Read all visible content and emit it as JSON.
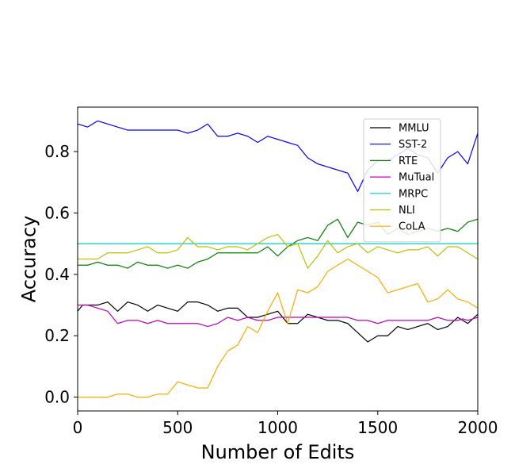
{
  "chart_data": {
    "type": "line",
    "title": "",
    "xlabel": "Number of Edits",
    "ylabel": "Accuracy",
    "xlim": [
      0,
      2000
    ],
    "ylim": [
      -0.045,
      0.945
    ],
    "xticks": [
      0,
      500,
      1000,
      1500,
      2000
    ],
    "yticks": [
      0.0,
      0.2,
      0.4,
      0.6,
      0.8
    ],
    "ytick_labels": [
      "0.0",
      "0.2",
      "0.4",
      "0.6",
      "0.8"
    ],
    "grid": false,
    "legend_position": "top-right",
    "x": [
      0,
      25,
      50,
      75,
      100,
      125,
      150,
      175,
      200,
      225,
      250,
      275,
      300,
      325,
      350,
      375,
      400,
      425,
      450,
      475,
      500,
      525,
      550,
      575,
      600,
      625,
      650,
      675,
      700,
      725,
      750,
      775,
      800,
      825,
      850,
      875,
      900,
      925,
      950,
      975,
      1000,
      1025,
      1050,
      1075,
      1100,
      1125,
      1150,
      1175,
      1200,
      1225,
      1250,
      1275,
      1300,
      1325,
      1350,
      1375,
      1400,
      1425,
      1450,
      1475,
      1500,
      1525,
      1550,
      1575,
      1600,
      1625,
      1650,
      1675,
      1700,
      1725,
      1750,
      1775,
      1800,
      1825,
      1850,
      1875,
      1900,
      1925,
      1950,
      1975,
      2000
    ],
    "series": [
      {
        "name": "MMLU",
        "color": "#000000",
        "values": [
          0.28,
          0.3,
          0.3,
          0.3,
          0.3,
          0.305,
          0.31,
          0.295,
          0.28,
          0.295,
          0.31,
          0.305,
          0.3,
          0.29,
          0.28,
          0.29,
          0.3,
          0.295,
          0.29,
          0.285,
          0.28,
          0.295,
          0.31,
          0.31,
          0.31,
          0.305,
          0.3,
          0.29,
          0.28,
          0.285,
          0.29,
          0.29,
          0.29,
          0.275,
          0.26,
          0.26,
          0.26,
          0.265,
          0.27,
          0.275,
          0.28,
          0.26,
          0.24,
          0.24,
          0.24,
          0.255,
          0.27,
          0.265,
          0.26,
          0.255,
          0.25,
          0.25,
          0.25,
          0.245,
          0.24,
          0.225,
          0.21,
          0.195,
          0.18,
          0.19,
          0.2,
          0.2,
          0.2,
          0.215,
          0.23,
          0.225,
          0.22,
          0.225,
          0.23,
          0.235,
          0.24,
          0.23,
          0.22,
          0.225,
          0.23,
          0.245,
          0.26,
          0.25,
          0.24,
          0.255,
          0.27
        ]
      },
      {
        "name": "SST-2",
        "color": "#0000ff",
        "values": [
          0.89,
          0.885,
          0.88,
          0.89,
          0.9,
          0.895,
          0.89,
          0.885,
          0.88,
          0.875,
          0.87,
          0.87,
          0.87,
          0.87,
          0.87,
          0.87,
          0.87,
          0.87,
          0.87,
          0.87,
          0.87,
          0.865,
          0.86,
          0.865,
          0.87,
          0.88,
          0.89,
          0.87,
          0.85,
          0.85,
          0.85,
          0.855,
          0.86,
          0.855,
          0.85,
          0.84,
          0.83,
          0.84,
          0.85,
          0.845,
          0.84,
          0.835,
          0.83,
          0.825,
          0.82,
          0.8,
          0.78,
          0.77,
          0.76,
          0.755,
          0.75,
          0.745,
          0.74,
          0.735,
          0.73,
          0.7,
          0.67,
          0.705,
          0.74,
          0.755,
          0.77,
          0.77,
          0.77,
          0.78,
          0.79,
          0.8,
          0.81,
          0.8,
          0.79,
          0.785,
          0.78,
          0.755,
          0.73,
          0.755,
          0.78,
          0.79,
          0.8,
          0.78,
          0.76,
          0.81,
          0.86
        ]
      },
      {
        "name": "RTE",
        "color": "#008000",
        "values": [
          0.43,
          0.43,
          0.43,
          0.435,
          0.44,
          0.435,
          0.43,
          0.43,
          0.43,
          0.425,
          0.42,
          0.43,
          0.44,
          0.435,
          0.43,
          0.43,
          0.43,
          0.425,
          0.42,
          0.425,
          0.43,
          0.425,
          0.42,
          0.43,
          0.44,
          0.445,
          0.45,
          0.46,
          0.47,
          0.47,
          0.47,
          0.47,
          0.47,
          0.47,
          0.47,
          0.47,
          0.47,
          0.48,
          0.49,
          0.475,
          0.46,
          0.475,
          0.49,
          0.5,
          0.51,
          0.515,
          0.52,
          0.515,
          0.51,
          0.535,
          0.56,
          0.57,
          0.58,
          0.55,
          0.52,
          0.545,
          0.57,
          0.565,
          0.56,
          0.565,
          0.57,
          0.55,
          0.53,
          0.54,
          0.55,
          0.54,
          0.53,
          0.535,
          0.54,
          0.545,
          0.55,
          0.545,
          0.54,
          0.545,
          0.55,
          0.545,
          0.54,
          0.555,
          0.57,
          0.575,
          0.58
        ]
      },
      {
        "name": "MuTual",
        "color": "#c000c0",
        "values": [
          0.3,
          0.3,
          0.3,
          0.295,
          0.29,
          0.285,
          0.28,
          0.26,
          0.24,
          0.245,
          0.25,
          0.25,
          0.25,
          0.245,
          0.24,
          0.245,
          0.25,
          0.245,
          0.24,
          0.24,
          0.24,
          0.24,
          0.24,
          0.24,
          0.24,
          0.235,
          0.23,
          0.235,
          0.24,
          0.25,
          0.26,
          0.255,
          0.25,
          0.255,
          0.26,
          0.255,
          0.25,
          0.25,
          0.25,
          0.255,
          0.26,
          0.26,
          0.26,
          0.26,
          0.26,
          0.26,
          0.26,
          0.26,
          0.26,
          0.26,
          0.26,
          0.26,
          0.26,
          0.26,
          0.26,
          0.255,
          0.25,
          0.25,
          0.25,
          0.245,
          0.24,
          0.245,
          0.25,
          0.25,
          0.25,
          0.25,
          0.25,
          0.25,
          0.25,
          0.25,
          0.25,
          0.255,
          0.26,
          0.255,
          0.25,
          0.25,
          0.25,
          0.255,
          0.25,
          0.255,
          0.26
        ]
      },
      {
        "name": "MRPC",
        "color": "#00cccc",
        "values": [
          0.5,
          0.5,
          0.5,
          0.5,
          0.5,
          0.5,
          0.5,
          0.5,
          0.5,
          0.5,
          0.5,
          0.5,
          0.5,
          0.5,
          0.5,
          0.5,
          0.5,
          0.5,
          0.5,
          0.5,
          0.5,
          0.5,
          0.5,
          0.5,
          0.5,
          0.5,
          0.5,
          0.5,
          0.5,
          0.5,
          0.5,
          0.5,
          0.5,
          0.5,
          0.5,
          0.5,
          0.5,
          0.5,
          0.5,
          0.5,
          0.5,
          0.5,
          0.5,
          0.5,
          0.5,
          0.5,
          0.5,
          0.5,
          0.5,
          0.5,
          0.5,
          0.5,
          0.5,
          0.5,
          0.5,
          0.5,
          0.5,
          0.5,
          0.5,
          0.5,
          0.5,
          0.5,
          0.5,
          0.5,
          0.5,
          0.5,
          0.5,
          0.5,
          0.5,
          0.5,
          0.5,
          0.5,
          0.5,
          0.5,
          0.5,
          0.5,
          0.5,
          0.5,
          0.5,
          0.5,
          0.5
        ]
      },
      {
        "name": "NLI",
        "color": "#bfbf00",
        "values": [
          0.45,
          0.45,
          0.45,
          0.45,
          0.45,
          0.46,
          0.47,
          0.47,
          0.47,
          0.47,
          0.47,
          0.475,
          0.48,
          0.485,
          0.49,
          0.48,
          0.47,
          0.47,
          0.47,
          0.475,
          0.48,
          0.5,
          0.52,
          0.505,
          0.49,
          0.49,
          0.49,
          0.485,
          0.48,
          0.485,
          0.49,
          0.49,
          0.49,
          0.485,
          0.48,
          0.49,
          0.5,
          0.51,
          0.52,
          0.525,
          0.53,
          0.51,
          0.49,
          0.495,
          0.5,
          0.46,
          0.42,
          0.44,
          0.46,
          0.485,
          0.51,
          0.49,
          0.47,
          0.48,
          0.49,
          0.495,
          0.5,
          0.485,
          0.47,
          0.48,
          0.49,
          0.485,
          0.48,
          0.475,
          0.47,
          0.475,
          0.48,
          0.48,
          0.48,
          0.485,
          0.49,
          0.475,
          0.46,
          0.475,
          0.49,
          0.49,
          0.49,
          0.48,
          0.47,
          0.46,
          0.45
        ]
      },
      {
        "name": "CoLA",
        "color": "#ffaa00",
        "values": [
          0.0,
          0.0,
          0.0,
          0.0,
          0.0,
          0.0,
          0.0,
          0.005,
          0.01,
          0.01,
          0.01,
          0.005,
          0.0,
          0.0,
          0.0,
          0.005,
          0.01,
          0.01,
          0.01,
          0.03,
          0.05,
          0.045,
          0.04,
          0.035,
          0.03,
          0.03,
          0.03,
          0.065,
          0.1,
          0.125,
          0.15,
          0.16,
          0.17,
          0.2,
          0.23,
          0.22,
          0.21,
          0.245,
          0.28,
          0.31,
          0.34,
          0.29,
          0.24,
          0.295,
          0.35,
          0.345,
          0.34,
          0.35,
          0.36,
          0.385,
          0.41,
          0.42,
          0.43,
          0.44,
          0.45,
          0.44,
          0.43,
          0.42,
          0.41,
          0.4,
          0.39,
          0.365,
          0.34,
          0.345,
          0.35,
          0.355,
          0.36,
          0.365,
          0.37,
          0.34,
          0.31,
          0.315,
          0.32,
          0.335,
          0.35,
          0.335,
          0.32,
          0.315,
          0.31,
          0.3,
          0.29
        ]
      }
    ]
  }
}
